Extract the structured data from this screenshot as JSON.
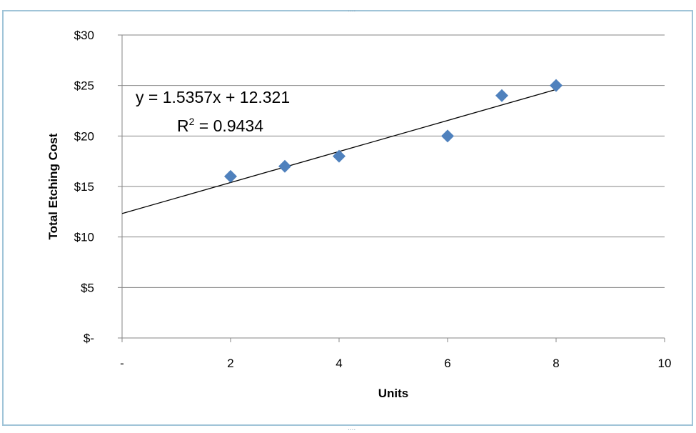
{
  "chart_data": {
    "type": "scatter",
    "title": "",
    "xlabel": "Units",
    "ylabel": "Total Etching Cost",
    "xlim": [
      0,
      10
    ],
    "ylim": [
      0,
      30
    ],
    "x_ticks": [
      0,
      2,
      4,
      6,
      8,
      10
    ],
    "x_tick_labels": [
      "-",
      "2",
      "4",
      "6",
      "8",
      "10"
    ],
    "y_ticks": [
      0,
      5,
      10,
      15,
      20,
      25,
      30
    ],
    "y_tick_labels": [
      "$-",
      "$5",
      "$10",
      "$15",
      "$20",
      "$25",
      "$30"
    ],
    "grid": "horizontal",
    "legend": "none",
    "series": [
      {
        "marker": "diamond",
        "color": "#4f81bd",
        "x": [
          2,
          3,
          4,
          6,
          7,
          8
        ],
        "y": [
          16,
          17,
          18,
          20,
          24,
          25
        ]
      }
    ],
    "trendline": {
      "type": "linear",
      "slope": 1.5357,
      "intercept": 12.321,
      "x_range": [
        0,
        8
      ],
      "color": "#000000",
      "equation_label": "y = 1.5357x + 12.321",
      "r2_prefix": "R",
      "r2_superscript": "2",
      "r2_value_text": " = 0.9434"
    }
  }
}
